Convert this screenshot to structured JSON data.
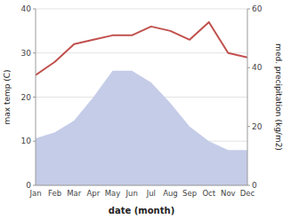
{
  "chart_data": {
    "type": "line",
    "categories": [
      "Jan",
      "Feb",
      "Mar",
      "Apr",
      "May",
      "Jun",
      "Jul",
      "Aug",
      "Sep",
      "Oct",
      "Nov",
      "Dec"
    ],
    "series": [
      {
        "type": "area",
        "color": "#c5cce8",
        "axis": "y2",
        "values": [
          16,
          18,
          22,
          30,
          39,
          39,
          35,
          28,
          20,
          15,
          12,
          12
        ]
      },
      {
        "type": "line",
        "color": "#c0504d",
        "values": [
          25,
          28,
          32,
          33,
          34,
          34,
          36,
          35,
          33,
          37,
          30,
          29
        ]
      }
    ],
    "xlabel": "date (month)",
    "ylabel": "max temp (C)",
    "y2label": "med. precipitation (kg/m2)",
    "ylim": [
      0,
      40
    ],
    "yticks": [
      0,
      10,
      20,
      30,
      40
    ],
    "y2lim": [
      0,
      60
    ],
    "y2ticks": [
      0,
      20,
      40,
      60
    ],
    "grid": true
  }
}
